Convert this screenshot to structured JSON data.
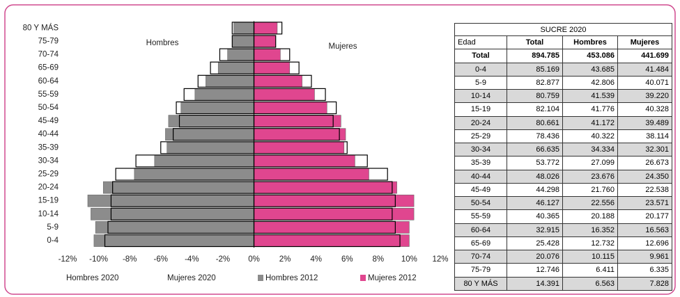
{
  "chart_data": {
    "type": "bar",
    "orientation": "horizontal",
    "annotations": [
      "Hombres",
      "Mujeres"
    ],
    "categories": [
      "0-4",
      "5-9",
      "10-14",
      "15-19",
      "20-24",
      "25-29",
      "30-34",
      "35-39",
      "40-44",
      "45-49",
      "50-54",
      "55-59",
      "60-64",
      "65-69",
      "70-74",
      "75-79",
      "80 Y MÁS"
    ],
    "series": [
      {
        "name": "Hombres 2020",
        "color": "#ffffff",
        "edgecolor": "#000000",
        "values": [
          -9.6,
          -9.4,
          -9.2,
          -9.2,
          -9.1,
          -8.9,
          -7.6,
          -6.0,
          -5.2,
          -4.8,
          -5.0,
          -4.5,
          -3.6,
          -2.8,
          -2.2,
          -1.4,
          -1.4
        ]
      },
      {
        "name": "Mujeres 2020",
        "color": "#ffffff",
        "edgecolor": "#000000",
        "values": [
          9.4,
          9.1,
          8.9,
          9.1,
          8.9,
          8.6,
          7.3,
          6.0,
          5.5,
          5.1,
          5.3,
          4.6,
          3.7,
          2.9,
          2.3,
          1.4,
          1.8
        ]
      },
      {
        "name": "Hombres 2012",
        "color": "#8c8c8c",
        "values": [
          -10.3,
          -10.2,
          -10.5,
          -10.7,
          -9.7,
          -7.7,
          -6.4,
          -5.6,
          -5.7,
          -5.5,
          -4.7,
          -3.8,
          -3.1,
          -2.3,
          -1.7,
          -1.4,
          -1.3
        ]
      },
      {
        "name": "Mujeres 2012",
        "color": "#e0468f",
        "values": [
          10.0,
          10.0,
          10.3,
          10.3,
          9.2,
          7.4,
          6.5,
          5.8,
          5.9,
          5.6,
          4.7,
          3.9,
          3.1,
          2.3,
          1.7,
          1.4,
          1.5
        ]
      }
    ],
    "xlim": [
      -12,
      12
    ],
    "xticks": [
      {
        "value": -12,
        "label": "-12%"
      },
      {
        "value": -10,
        "label": "-10%"
      },
      {
        "value": -8,
        "label": "-8%"
      },
      {
        "value": -6,
        "label": "-6%"
      },
      {
        "value": -4,
        "label": "-4%"
      },
      {
        "value": -2,
        "label": "-2%"
      },
      {
        "value": 0,
        "label": "0%"
      },
      {
        "value": 2,
        "label": "2%"
      },
      {
        "value": 4,
        "label": "4%"
      },
      {
        "value": 6,
        "label": "6%"
      },
      {
        "value": 8,
        "label": "8%"
      },
      {
        "value": 10,
        "label": "10%"
      },
      {
        "value": 12,
        "label": "12%"
      }
    ],
    "legend": "bottom"
  },
  "table": {
    "title": "SUCRE 2020",
    "columns": [
      "Edad",
      "Total",
      "Hombres",
      "Mujeres"
    ],
    "rows": [
      [
        "Total",
        "894.785",
        "453.086",
        "441.699"
      ],
      [
        "0-4",
        "85.169",
        "43.685",
        "41.484"
      ],
      [
        "5-9",
        "82.877",
        "42.806",
        "40.071"
      ],
      [
        "10-14",
        "80.759",
        "41.539",
        "39.220"
      ],
      [
        "15-19",
        "82.104",
        "41.776",
        "40.328"
      ],
      [
        "20-24",
        "80.661",
        "41.172",
        "39.489"
      ],
      [
        "25-29",
        "78.436",
        "40.322",
        "38.114"
      ],
      [
        "30-34",
        "66.635",
        "34.334",
        "32.301"
      ],
      [
        "35-39",
        "53.772",
        "27.099",
        "26.673"
      ],
      [
        "40-44",
        "48.026",
        "23.676",
        "24.350"
      ],
      [
        "45-49",
        "44.298",
        "21.760",
        "22.538"
      ],
      [
        "50-54",
        "46.127",
        "22.556",
        "23.571"
      ],
      [
        "55-59",
        "40.365",
        "20.188",
        "20.177"
      ],
      [
        "60-64",
        "32.915",
        "16.352",
        "16.563"
      ],
      [
        "65-69",
        "25.428",
        "12.732",
        "12.696"
      ],
      [
        "70-74",
        "20.076",
        "10.115",
        "9.961"
      ],
      [
        "75-79",
        "12.746",
        "6.411",
        "6.335"
      ],
      [
        "80 Y MÁS",
        "14.391",
        "6.563",
        "7.828"
      ]
    ]
  }
}
